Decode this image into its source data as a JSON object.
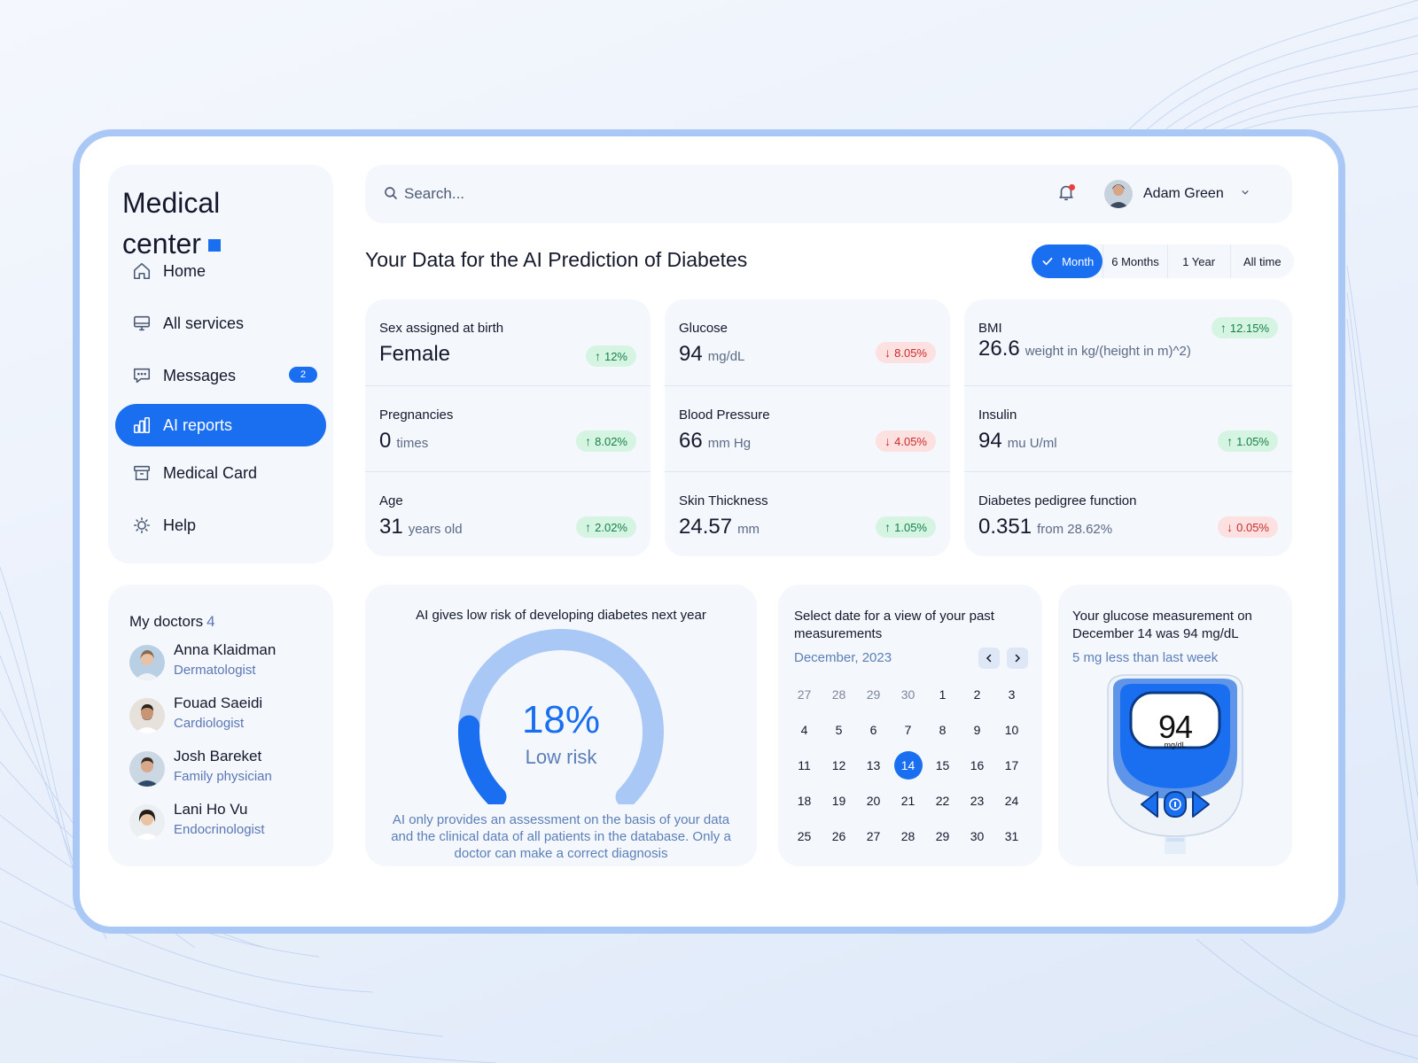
{
  "app": {
    "brand_line1": "Medical",
    "brand_line2": "center",
    "accent": "#1a6ff0"
  },
  "sidebar": {
    "items": [
      {
        "label": "Home",
        "icon": "home-icon"
      },
      {
        "label": "All services",
        "icon": "monitor-icon"
      },
      {
        "label": "Messages",
        "icon": "chat-icon",
        "badge": "2"
      },
      {
        "label": "AI reports",
        "icon": "bar-chart-icon",
        "active": true
      },
      {
        "label": "Medical Card",
        "icon": "archive-icon"
      },
      {
        "label": "Help",
        "icon": "lightbulb-icon"
      }
    ]
  },
  "search": {
    "placeholder": "Search..."
  },
  "user": {
    "name": "Adam Green"
  },
  "page": {
    "title": "Your Data for the AI Prediction of Diabetes"
  },
  "tabs": [
    {
      "label": "Month",
      "active": true
    },
    {
      "label": "6 Months"
    },
    {
      "label": "1 Year"
    },
    {
      "label": "All time"
    }
  ],
  "metrics": {
    "sex": {
      "label": "Sex assigned at birth",
      "value": "Female",
      "unit": "",
      "change": "12%",
      "direction": "up"
    },
    "pregnancies": {
      "label": "Pregnancies",
      "value": "0",
      "unit": "times",
      "change": "8.02%",
      "direction": "up"
    },
    "age": {
      "label": "Age",
      "value": "31",
      "unit": "years old",
      "change": "2.02%",
      "direction": "up"
    },
    "glucose": {
      "label": "Glucose",
      "value": "94",
      "unit": "mg/dL",
      "change": "8.05%",
      "direction": "down"
    },
    "blood_pressure": {
      "label": "Blood Pressure",
      "value": "66",
      "unit": "mm Hg",
      "change": "4.05%",
      "direction": "down"
    },
    "skin": {
      "label": "Skin Thickness",
      "value": "24.57",
      "unit": "mm",
      "change": "1.05%",
      "direction": "up"
    },
    "bmi": {
      "label": "BMI",
      "value": "26.6",
      "unit": "weight in kg/(height in m)^2)",
      "change": "12.15%",
      "direction": "up"
    },
    "insulin": {
      "label": "Insulin",
      "value": "94",
      "unit": "mu U/ml",
      "change": "1.05%",
      "direction": "up"
    },
    "pedigree": {
      "label": "Diabetes pedigree function",
      "value": "0.351",
      "unit": "from 28.62%",
      "change": "0.05%",
      "direction": "down"
    }
  },
  "doctors": {
    "title": "My doctors",
    "count": "4",
    "list": [
      {
        "name": "Anna Klaidman",
        "role": "Dermatologist"
      },
      {
        "name": "Fouad Saeidi",
        "role": "Cardiologist"
      },
      {
        "name": "Josh Bareket",
        "role": "Family physician"
      },
      {
        "name": "Lani Ho Vu",
        "role": "Endocrinologist"
      }
    ]
  },
  "risk": {
    "title": "AI gives low risk of developing diabetes next year",
    "percent": 18,
    "value_text": "18%",
    "label": "Low risk",
    "note": "AI only provides an assessment on the basis of your data and the clinical data of all patients in the database. Only a doctor can make a correct diagnosis"
  },
  "calendar": {
    "title": "Select date for a view of your past measurements",
    "month": "December, 2023",
    "days": [
      "27",
      "28",
      "29",
      "30",
      "1",
      "2",
      "3",
      "4",
      "5",
      "6",
      "7",
      "8",
      "9",
      "10",
      "11",
      "12",
      "13",
      "14",
      "15",
      "16",
      "17",
      "18",
      "19",
      "20",
      "21",
      "22",
      "23",
      "24",
      "25",
      "26",
      "27",
      "28",
      "29",
      "30",
      "31"
    ],
    "muted_count": 4,
    "selected": "14"
  },
  "glucose_card": {
    "title": "Your glucose measurement on December 14 was 94 mg/dL",
    "subtitle": "5 mg less than last week",
    "meter_value": "94",
    "meter_unit": "mg/dL"
  }
}
